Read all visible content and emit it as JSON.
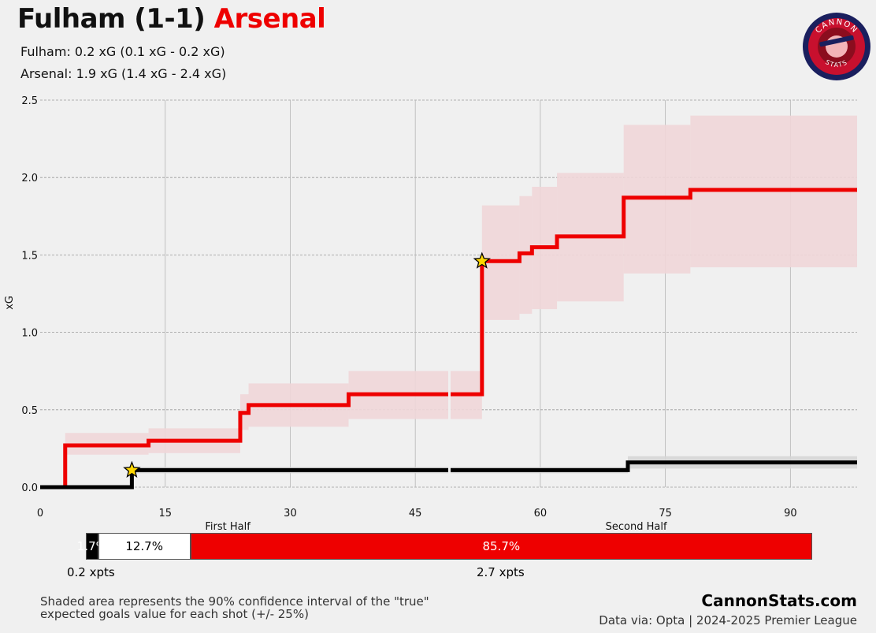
{
  "header": {
    "title_home": "Fulham (1-1)",
    "title_away": "Arsenal",
    "fulham_line": "Fulham: 0.2 xG (0.1 xG - 0.2 xG)",
    "arsenal_line": "Arsenal: 1.9 xG (1.4 xG - 2.4 xG)"
  },
  "logo": {
    "top_text": "CANNON",
    "bottom_text": "STATS",
    "icon": "cannon-crest-icon"
  },
  "colors": {
    "home": "#000000",
    "away": "#ee0000",
    "away_band": "#f0d6d8",
    "home_band": "#d6d6d6",
    "background": "#f0f0f0"
  },
  "chart_data": {
    "type": "line",
    "ylabel": "xG",
    "ylim": [
      0,
      2.5
    ],
    "yticks": [
      "0.0",
      "0.5",
      "1.0",
      "1.5",
      "2.0",
      "2.5"
    ],
    "xlim": [
      0,
      98
    ],
    "xticks": [
      "0",
      "15",
      "30",
      "45",
      "60",
      "75",
      "90"
    ],
    "half_labels": [
      "First Half",
      "Second Half"
    ],
    "grid": true,
    "series": [
      {
        "name": "Arsenal",
        "color": "#ee0000",
        "steps": [
          {
            "x": 0,
            "y": 0,
            "lo": 0,
            "hi": 0
          },
          {
            "x": 3,
            "y": 0.27,
            "lo": 0.21,
            "hi": 0.35
          },
          {
            "x": 13,
            "y": 0.3,
            "lo": 0.22,
            "hi": 0.38
          },
          {
            "x": 24,
            "y": 0.48,
            "lo": 0.37,
            "hi": 0.6
          },
          {
            "x": 25,
            "y": 0.53,
            "lo": 0.39,
            "hi": 0.67
          },
          {
            "x": 37,
            "y": 0.6,
            "lo": 0.44,
            "hi": 0.75
          },
          {
            "x": 53,
            "y": 1.46,
            "lo": 1.08,
            "hi": 1.82
          },
          {
            "x": 57.5,
            "y": 1.51,
            "lo": 1.12,
            "hi": 1.88
          },
          {
            "x": 59,
            "y": 1.55,
            "lo": 1.15,
            "hi": 1.94
          },
          {
            "x": 62,
            "y": 1.62,
            "lo": 1.2,
            "hi": 2.03
          },
          {
            "x": 70,
            "y": 1.87,
            "lo": 1.38,
            "hi": 2.34
          },
          {
            "x": 78,
            "y": 1.92,
            "lo": 1.42,
            "hi": 2.4
          }
        ],
        "goals": [
          {
            "x": 53,
            "y": 1.46
          }
        ]
      },
      {
        "name": "Fulham",
        "color": "#000000",
        "steps": [
          {
            "x": 0,
            "y": 0,
            "lo": 0,
            "hi": 0
          },
          {
            "x": 11,
            "y": 0.11,
            "lo": 0.09,
            "hi": 0.13
          },
          {
            "x": 70.5,
            "y": 0.16,
            "lo": 0.12,
            "hi": 0.2
          }
        ],
        "goals": [
          {
            "x": 11,
            "y": 0.11
          }
        ]
      }
    ],
    "outcome_bar": [
      {
        "label": "1.7%",
        "value": 1.7,
        "color": "#000000",
        "text_color": "#ffffff"
      },
      {
        "label": "12.7%",
        "value": 12.7,
        "color": "#ffffff",
        "text_color": "#000000"
      },
      {
        "label": "85.7%",
        "value": 85.7,
        "color": "#ee0000",
        "text_color": "#ffffff"
      }
    ],
    "xpts": {
      "home": "0.2 xpts",
      "away": "2.7 xpts"
    }
  },
  "footer": {
    "note_line1": "Shaded area represents the 90% confidence interval of the \"true\"",
    "note_line2": "expected goals value for each shot (+/- 25%)",
    "brand": "CannonStats.com",
    "source": "Data via: Opta | 2024-2025 Premier League"
  }
}
